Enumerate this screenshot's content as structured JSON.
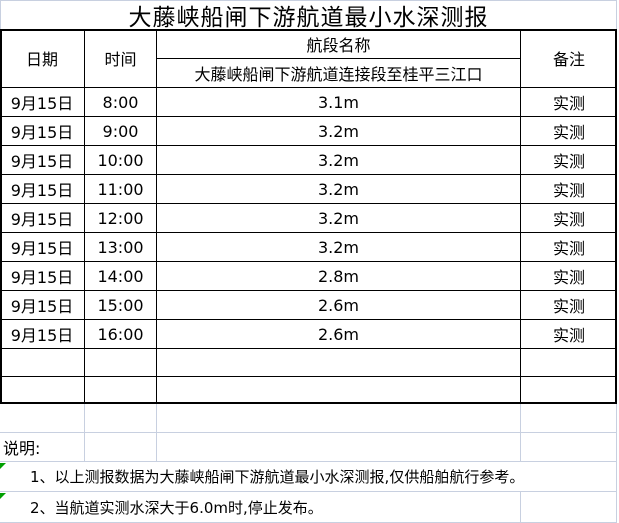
{
  "title": "大藤峡船闸下游航道最小水深测报",
  "table": {
    "headers": {
      "date": "日期",
      "time": "时间",
      "section_group": "航段名称",
      "section_name": "大藤峡船闸下游航道连接段至桂平三江口",
      "remark": "备注"
    },
    "rows": [
      {
        "date": "9月15日",
        "time": "8:00",
        "depth": "3.1m",
        "remark": "实测"
      },
      {
        "date": "9月15日",
        "time": "9:00",
        "depth": "3.2m",
        "remark": "实测"
      },
      {
        "date": "9月15日",
        "time": "10:00",
        "depth": "3.2m",
        "remark": "实测"
      },
      {
        "date": "9月15日",
        "time": "11:00",
        "depth": "3.2m",
        "remark": "实测"
      },
      {
        "date": "9月15日",
        "time": "12:00",
        "depth": "3.2m",
        "remark": "实测"
      },
      {
        "date": "9月15日",
        "time": "13:00",
        "depth": "3.2m",
        "remark": "实测"
      },
      {
        "date": "9月15日",
        "time": "14:00",
        "depth": "2.8m",
        "remark": "实测"
      },
      {
        "date": "9月15日",
        "time": "15:00",
        "depth": "2.6m",
        "remark": "实测"
      },
      {
        "date": "9月15日",
        "time": "16:00",
        "depth": "2.6m",
        "remark": "实测"
      }
    ]
  },
  "notes": {
    "label": "说明:",
    "items": [
      "1、以上测报数据为大藤峡船闸下游航道最小水深测报,仅供船舶航行参考。",
      "2、当航道实测水深大于6.0m时,停止发布。"
    ]
  },
  "colors": {
    "table-border": "#000000",
    "gridline": "#c8d0e0",
    "indicator-green": "#00a000",
    "text": "#000000",
    "background": "#ffffff"
  }
}
